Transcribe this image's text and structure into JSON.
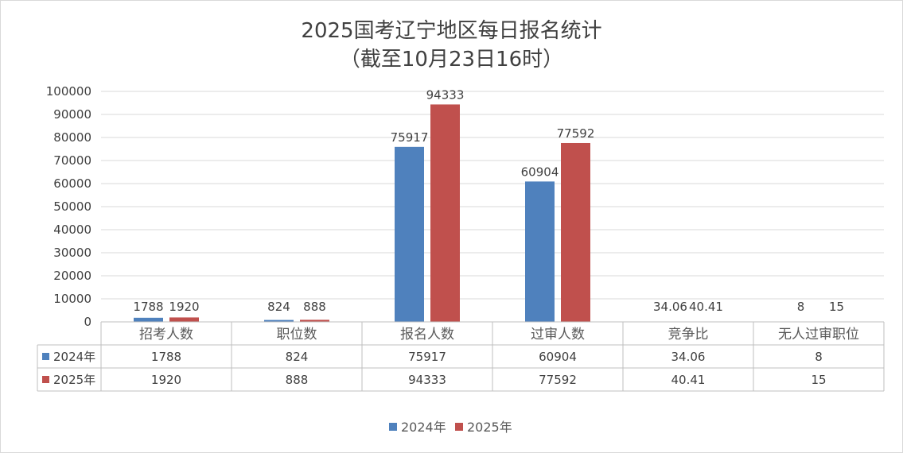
{
  "chart_data": {
    "type": "bar",
    "title": "2025国考辽宁地区每日报名统计",
    "subtitle": "（截至10月23日16时）",
    "categories": [
      "招考人数",
      "职位数",
      "报名人数",
      "过审人数",
      "竞争比",
      "无人过审职位"
    ],
    "series": [
      {
        "name": "2024年",
        "color": "#4f81bd",
        "values": [
          1788,
          824,
          75917,
          60904,
          34.06,
          8
        ],
        "labels": [
          "1788",
          "824",
          "75917",
          "60904",
          "34.06",
          "8"
        ]
      },
      {
        "name": "2025年",
        "color": "#c0504d",
        "values": [
          1920,
          888,
          94333,
          77592,
          40.41,
          15
        ],
        "labels": [
          "1920",
          "888",
          "94333",
          "77592",
          "40.41",
          "15"
        ]
      }
    ],
    "ylim": [
      0,
      100000
    ],
    "yticks": [
      "0",
      "10000",
      "20000",
      "30000",
      "40000",
      "50000",
      "60000",
      "70000",
      "80000",
      "90000",
      "100000"
    ],
    "grid": true,
    "legend": "bottom",
    "data_table": true
  }
}
